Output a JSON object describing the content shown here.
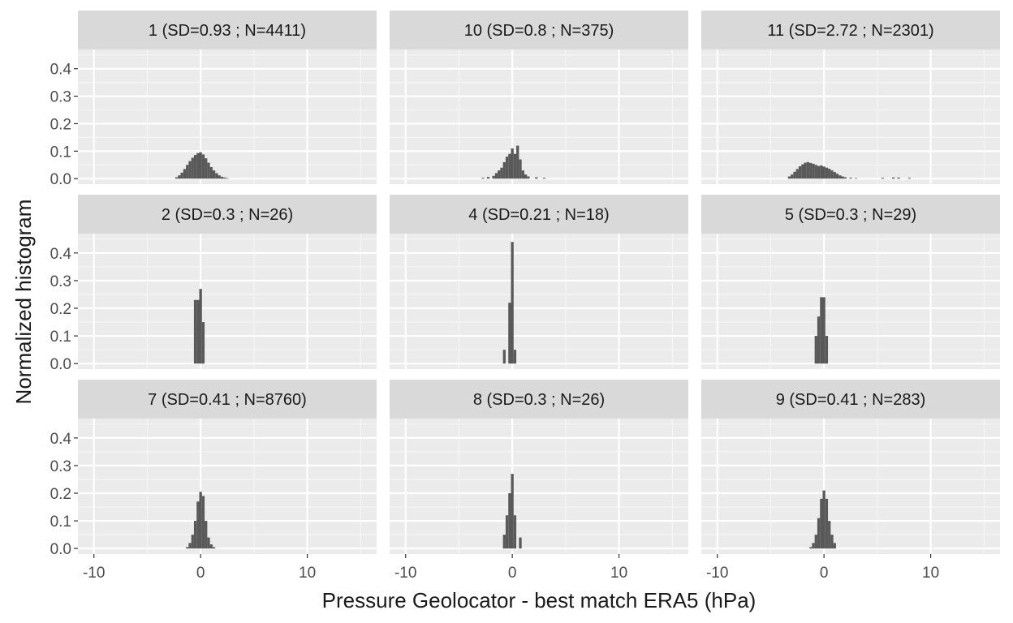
{
  "chart_data": {
    "type": "bar",
    "layout": "faceted histogram grid, 3 x 3, shared axes",
    "xlabel": "Pressure Geolocator - best match ERA5 (hPa)",
    "ylabel": "Normalized histogram",
    "xlim": [
      -11.5,
      16.5
    ],
    "ylim": [
      -0.02,
      0.47
    ],
    "x_ticks": [
      -10,
      0,
      10
    ],
    "x_tick_labels": [
      "-10",
      "0",
      "10"
    ],
    "y_ticks": [
      0.0,
      0.1,
      0.2,
      0.3,
      0.4
    ],
    "y_tick_labels": [
      "0.0",
      "0.1",
      "0.2",
      "0.3",
      "0.4"
    ],
    "grid": true,
    "legend": "none",
    "bin_width": 0.25,
    "colors": {
      "panel_bg": "#ebebeb",
      "strip_bg": "#d9d9d9",
      "grid_major": "#ffffff",
      "bar": "#595959",
      "text": "#1a1a1a",
      "tick_text": "#4d4d4d"
    },
    "facets": [
      {
        "label": "1 (SD=0.93 ; N=4411)",
        "bins": [
          [
            -2.25,
            0.005
          ],
          [
            -2.0,
            0.012
          ],
          [
            -1.75,
            0.022
          ],
          [
            -1.5,
            0.035
          ],
          [
            -1.25,
            0.05
          ],
          [
            -1.0,
            0.064
          ],
          [
            -0.75,
            0.076
          ],
          [
            -0.5,
            0.086
          ],
          [
            -0.25,
            0.093
          ],
          [
            0.0,
            0.096
          ],
          [
            0.25,
            0.088
          ],
          [
            0.5,
            0.074
          ],
          [
            0.75,
            0.058
          ],
          [
            1.0,
            0.042
          ],
          [
            1.25,
            0.03
          ],
          [
            1.5,
            0.02
          ],
          [
            1.75,
            0.012
          ],
          [
            2.0,
            0.007
          ],
          [
            2.25,
            0.004
          ],
          [
            2.5,
            0.002
          ]
        ]
      },
      {
        "label": "10 (SD=0.8 ; N=375)",
        "bins": [
          [
            -2.75,
            0.003
          ],
          [
            -2.25,
            0.006
          ],
          [
            -1.75,
            0.01
          ],
          [
            -1.5,
            0.02
          ],
          [
            -1.25,
            0.03
          ],
          [
            -1.0,
            0.04
          ],
          [
            -0.75,
            0.06
          ],
          [
            -0.5,
            0.08
          ],
          [
            -0.25,
            0.09
          ],
          [
            0.0,
            0.11
          ],
          [
            0.25,
            0.09
          ],
          [
            0.5,
            0.12
          ],
          [
            0.75,
            0.07
          ],
          [
            1.0,
            0.03
          ],
          [
            1.25,
            0.015
          ],
          [
            1.5,
            0.008
          ],
          [
            2.25,
            0.005
          ],
          [
            3.0,
            0.003
          ]
        ]
      },
      {
        "label": "11 (SD=2.72 ; N=2301)",
        "bins": [
          [
            -3.25,
            0.008
          ],
          [
            -3.0,
            0.015
          ],
          [
            -2.75,
            0.025
          ],
          [
            -2.5,
            0.035
          ],
          [
            -2.25,
            0.045
          ],
          [
            -2.0,
            0.052
          ],
          [
            -1.75,
            0.058
          ],
          [
            -1.5,
            0.06
          ],
          [
            -1.25,
            0.057
          ],
          [
            -1.0,
            0.054
          ],
          [
            -0.75,
            0.05
          ],
          [
            -0.5,
            0.046
          ],
          [
            -0.25,
            0.048
          ],
          [
            0.0,
            0.044
          ],
          [
            0.25,
            0.04
          ],
          [
            0.5,
            0.036
          ],
          [
            0.75,
            0.03
          ],
          [
            1.0,
            0.024
          ],
          [
            1.25,
            0.018
          ],
          [
            1.5,
            0.012
          ],
          [
            1.75,
            0.008
          ],
          [
            2.0,
            0.005
          ],
          [
            2.5,
            0.003
          ],
          [
            3.0,
            0.002
          ],
          [
            5.5,
            0.003
          ],
          [
            6.5,
            0.004
          ],
          [
            7.0,
            0.004
          ],
          [
            8.0,
            0.003
          ]
        ]
      },
      {
        "label": "2 (SD=0.3 ; N=26)",
        "bins": [
          [
            -0.5,
            0.23
          ],
          [
            -0.25,
            0.23
          ],
          [
            0.0,
            0.27
          ],
          [
            0.25,
            0.15
          ]
        ]
      },
      {
        "label": "4 (SD=0.21 ; N=18)",
        "bins": [
          [
            -0.75,
            0.05
          ],
          [
            -0.25,
            0.22
          ],
          [
            0.0,
            0.44
          ],
          [
            0.25,
            0.05
          ]
        ]
      },
      {
        "label": "5 (SD=0.3 ; N=29)",
        "bins": [
          [
            -0.75,
            0.1
          ],
          [
            -0.5,
            0.17
          ],
          [
            -0.25,
            0.24
          ],
          [
            0.0,
            0.24
          ],
          [
            0.25,
            0.1
          ]
        ]
      },
      {
        "label": "7 (SD=0.41 ; N=8760)",
        "bins": [
          [
            -1.25,
            0.005
          ],
          [
            -1.0,
            0.02
          ],
          [
            -0.75,
            0.05
          ],
          [
            -0.5,
            0.1
          ],
          [
            -0.25,
            0.17
          ],
          [
            0.0,
            0.205
          ],
          [
            0.25,
            0.19
          ],
          [
            0.5,
            0.1
          ],
          [
            0.75,
            0.04
          ],
          [
            1.0,
            0.015
          ],
          [
            1.25,
            0.005
          ]
        ]
      },
      {
        "label": "8 (SD=0.3 ; N=26)",
        "bins": [
          [
            -0.75,
            0.05
          ],
          [
            -0.5,
            0.12
          ],
          [
            -0.25,
            0.2
          ],
          [
            0.0,
            0.27
          ],
          [
            0.25,
            0.12
          ],
          [
            0.75,
            0.04
          ]
        ]
      },
      {
        "label": "9 (SD=0.41 ; N=283)",
        "bins": [
          [
            -1.25,
            0.005
          ],
          [
            -1.0,
            0.02
          ],
          [
            -0.75,
            0.05
          ],
          [
            -0.5,
            0.11
          ],
          [
            -0.25,
            0.18
          ],
          [
            0.0,
            0.21
          ],
          [
            0.25,
            0.18
          ],
          [
            0.5,
            0.1
          ],
          [
            0.75,
            0.05
          ],
          [
            1.0,
            0.02
          ]
        ]
      }
    ]
  }
}
